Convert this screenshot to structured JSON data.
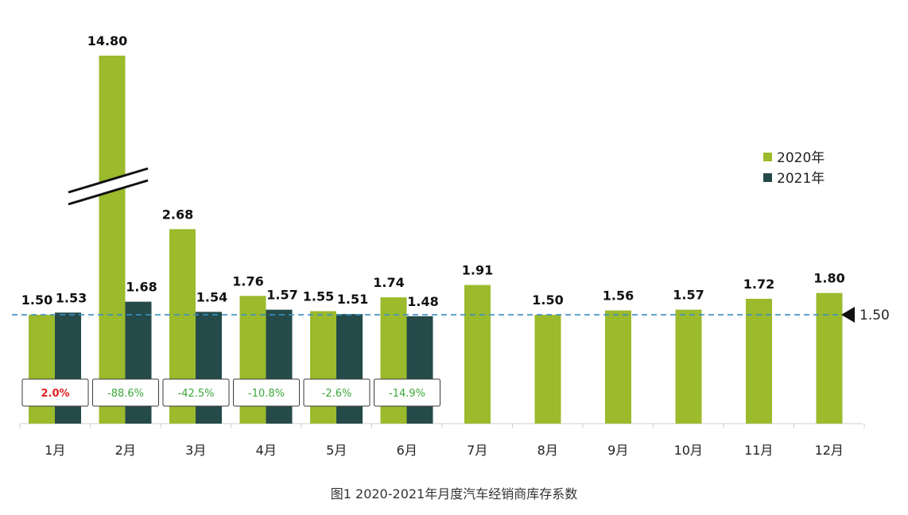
{
  "chart_data": {
    "type": "bar",
    "caption": "图1  2020-2021年月度汽车经销商库存系数",
    "categories": [
      "1月",
      "2月",
      "3月",
      "4月",
      "5月",
      "6月",
      "7月",
      "8月",
      "9月",
      "10月",
      "11月",
      "12月"
    ],
    "series": [
      {
        "name": "2020年",
        "color": "#9bba2c",
        "values": [
          1.5,
          14.8,
          2.68,
          1.76,
          1.55,
          1.74,
          1.91,
          1.5,
          1.56,
          1.57,
          1.72,
          1.8
        ],
        "labels": [
          "1.50",
          "14.80",
          "2.68",
          "1.76",
          "1.55",
          "1.74",
          "1.91",
          "1.50",
          "1.56",
          "1.57",
          "1.72",
          "1.80"
        ]
      },
      {
        "name": "2021年",
        "color": "#254a4a",
        "values": [
          1.53,
          1.68,
          1.54,
          1.57,
          1.51,
          1.48,
          null,
          null,
          null,
          null,
          null,
          null
        ],
        "labels": [
          "1.53",
          "1.68",
          "1.54",
          "1.57",
          "1.51",
          "1.48"
        ]
      }
    ],
    "yoy_change": [
      {
        "label": "2.0%",
        "color": "#e02020"
      },
      {
        "label": "-88.6%",
        "color": "#3aa83a"
      },
      {
        "label": "-42.5%",
        "color": "#3aa83a"
      },
      {
        "label": "-10.8%",
        "color": "#3aa83a"
      },
      {
        "label": "-2.6%",
        "color": "#3aa83a"
      },
      {
        "label": "-14.9%",
        "color": "#3aa83a"
      }
    ],
    "reference_line": {
      "value": 1.5,
      "label": "1.50",
      "color": "#3a8fc4"
    },
    "axis_break": {
      "category": "2月",
      "series": "2020年"
    },
    "legend": {
      "position": "top-right",
      "items": [
        "2020年",
        "2021年"
      ]
    }
  }
}
